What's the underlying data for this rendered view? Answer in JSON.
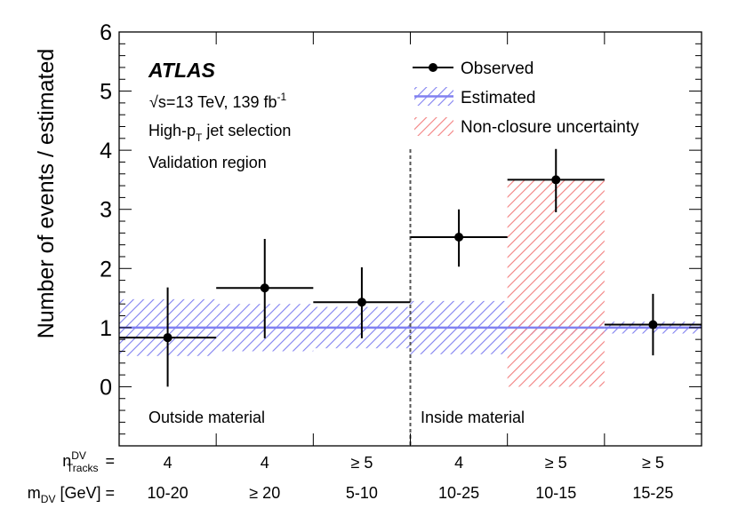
{
  "chart_data": {
    "type": "bar",
    "ylabel": "Number of events / estimated",
    "ylim": [
      -1,
      6
    ],
    "yticks": [
      0,
      1,
      2,
      3,
      4,
      5,
      6
    ],
    "bins": [
      {
        "n_tracks": "4",
        "m_dv": "10-20",
        "observed": 0.83,
        "err_lo": 0.83,
        "err_hi": 0.85,
        "est_lo": 0.52,
        "est_hi": 1.48,
        "nonclosure": null
      },
      {
        "n_tracks": "4",
        "m_dv": "≥ 20",
        "observed": 1.67,
        "err_lo": 0.85,
        "err_hi": 0.83,
        "est_lo": 0.6,
        "est_hi": 1.4,
        "nonclosure": null
      },
      {
        "n_tracks": "≥ 5",
        "m_dv": "5-10",
        "observed": 1.43,
        "err_lo": 0.61,
        "err_hi": 0.59,
        "est_lo": 0.65,
        "est_hi": 1.35,
        "nonclosure": null
      },
      {
        "n_tracks": "4",
        "m_dv": "10-25",
        "observed": 2.53,
        "err_lo": 0.5,
        "err_hi": 0.47,
        "est_lo": 0.55,
        "est_hi": 1.45,
        "nonclosure": null
      },
      {
        "n_tracks": "≥ 5",
        "m_dv": "10-15",
        "observed": 3.5,
        "err_lo": 0.55,
        "err_hi": 0.52,
        "est_lo": 0.88,
        "est_hi": 1.12,
        "nonclosure": [
          0.0,
          3.5
        ]
      },
      {
        "n_tracks": "≥ 5",
        "m_dv": "15-25",
        "observed": 1.05,
        "err_lo": 0.52,
        "err_hi": 0.52,
        "est_lo": 0.9,
        "est_hi": 1.1,
        "nonclosure": null
      }
    ],
    "divider_after_bin": 3,
    "region_labels": [
      "Outside material",
      "Inside material"
    ],
    "legend": [
      "Observed",
      "Estimated",
      "Non-closure uncertainty"
    ],
    "row_labels": {
      "n_tracks_main": "n",
      "n_tracks_sup": "DV",
      "n_tracks_sub": "Tracks",
      "m_dv_main": "m",
      "m_dv_sub": "DV",
      "m_dv_unit": "[GeV] =",
      "equals": "="
    },
    "experiment": "ATLAS",
    "sqrt_symbol": "√",
    "energy_text": "s=13 TeV, 139 fb",
    "energy_sup": "-1",
    "selection_text_main": "High-p",
    "selection_text_sub": "T",
    "selection_text_rest": " jet selection",
    "region_text": "Validation region",
    "colors": {
      "estimated": "#8080f0",
      "nonclosure": "#f28080",
      "divider": "#555555",
      "region_label": "#777777"
    }
  }
}
